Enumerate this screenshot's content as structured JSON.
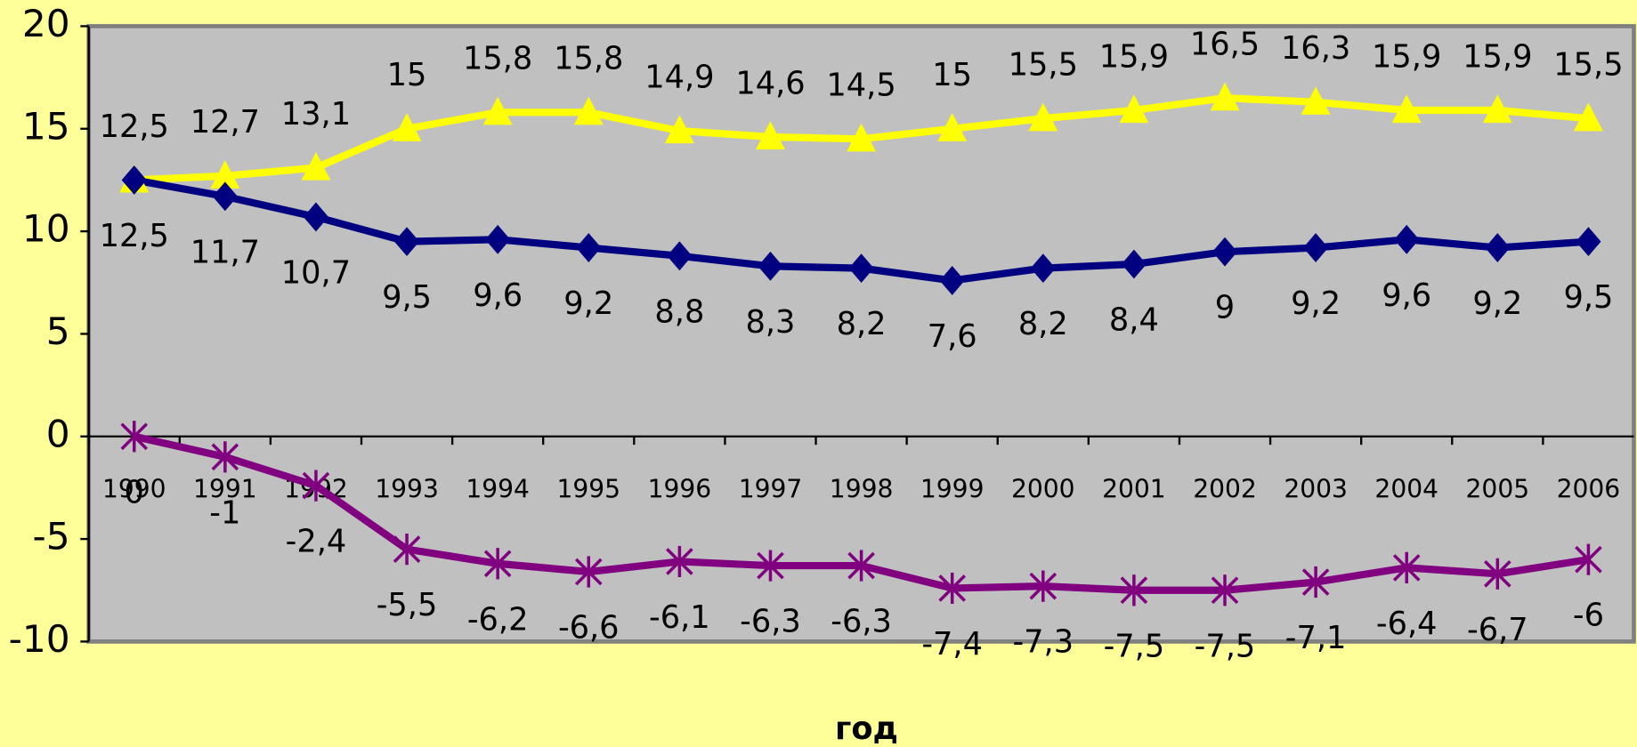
{
  "chart_data": {
    "type": "line",
    "x_label": "год",
    "categories": [
      "1990",
      "1991",
      "1992",
      "1993",
      "1994",
      "1995",
      "1996",
      "1997",
      "1998",
      "1999",
      "2000",
      "2001",
      "2002",
      "2003",
      "2004",
      "2005",
      "2006"
    ],
    "series": [
      {
        "color": "#ffff00",
        "marker": "triangle",
        "label_position": "above",
        "values": [
          12.5,
          12.7,
          13.1,
          15,
          15.8,
          15.8,
          14.9,
          14.6,
          14.5,
          15,
          15.5,
          15.9,
          16.5,
          16.3,
          15.9,
          15.9,
          15.5
        ],
        "value_labels": [
          "12,5",
          "12,7",
          "13,1",
          "15",
          "15,8",
          "15,8",
          "14,9",
          "14,6",
          "14,5",
          "15",
          "15,5",
          "15,9",
          "16,5",
          "16,3",
          "15,9",
          "15,9",
          "15,5"
        ]
      },
      {
        "color": "#000080",
        "marker": "diamond",
        "label_position": "below",
        "values": [
          12.5,
          11.7,
          10.7,
          9.5,
          9.6,
          9.2,
          8.8,
          8.3,
          8.2,
          7.6,
          8.2,
          8.4,
          9,
          9.2,
          9.6,
          9.2,
          9.5
        ],
        "value_labels": [
          "12,5",
          "11,7",
          "10,7",
          "9,5",
          "9,6",
          "9,2",
          "8,8",
          "8,3",
          "8,2",
          "7,6",
          "8,2",
          "8,4",
          "9",
          "9,2",
          "9,6",
          "9,2",
          "9,5"
        ]
      },
      {
        "color": "#800080",
        "marker": "asterisk",
        "label_position": "below",
        "values": [
          0,
          -1,
          -2.4,
          -5.5,
          -6.2,
          -6.6,
          -6.1,
          -6.3,
          -6.3,
          -7.4,
          -7.3,
          -7.5,
          -7.5,
          -7.1,
          -6.4,
          -6.7,
          -6
        ],
        "value_labels": [
          "0",
          "-1",
          "-2,4",
          "-5,5",
          "-6,2",
          "-6,6",
          "-6,1",
          "-6,3",
          "-6,3",
          "-7,4",
          "-7,3",
          "-7,5",
          "-7,5",
          "-7,1",
          "-6,4",
          "-6,7",
          "-6"
        ]
      }
    ],
    "ylim": [
      -10,
      20
    ],
    "yticks": [
      -10,
      -5,
      0,
      5,
      10,
      15,
      20
    ],
    "grid": false
  }
}
